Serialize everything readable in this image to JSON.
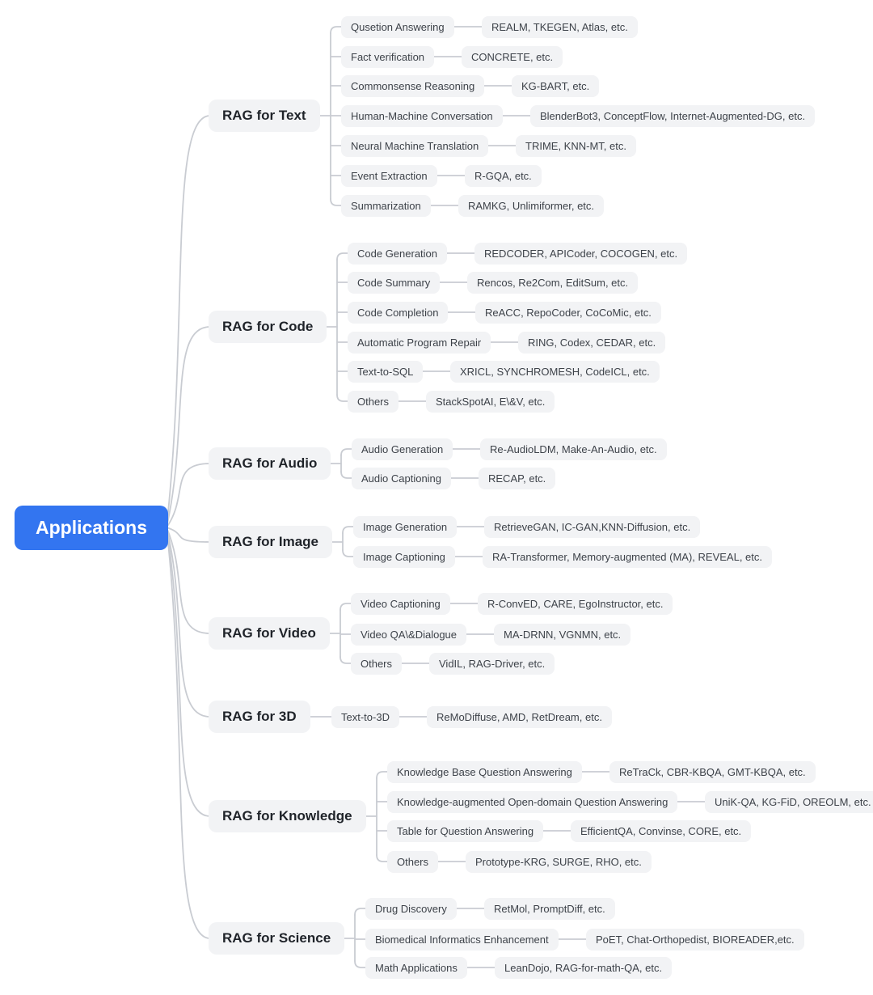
{
  "root": {
    "label": "Applications"
  },
  "colors": {
    "root_bg": "#3375f0",
    "root_text": "#ffffff",
    "node_bg": "#f2f3f5",
    "branch_text": "#1f2329",
    "topic_text": "#3d4249",
    "line": "#c9ccd2"
  },
  "branches": [
    {
      "label": "RAG for Text",
      "topics": [
        {
          "topic": "Qusetion Answering",
          "papers": "REALM, TKEGEN, Atlas, etc."
        },
        {
          "topic": "Fact verification",
          "papers": "CONCRETE, etc."
        },
        {
          "topic": "Commonsense Reasoning",
          "papers": "KG-BART, etc."
        },
        {
          "topic": "Human-Machine Conversation",
          "papers": "BlenderBot3, ConceptFlow, Internet-Augmented-DG, etc."
        },
        {
          "topic": "Neural Machine Translation",
          "papers": "TRIME, KNN-MT, etc."
        },
        {
          "topic": "Event Extraction",
          "papers": "R-GQA, etc."
        },
        {
          "topic": "Summarization",
          "papers": "RAMKG, Unlimiformer, etc."
        }
      ]
    },
    {
      "label": "RAG for Code",
      "topics": [
        {
          "topic": "Code Generation",
          "papers": "REDCODER, APICoder, COCOGEN, etc."
        },
        {
          "topic": "Code Summary",
          "papers": "Rencos, Re2Com, EditSum, etc."
        },
        {
          "topic": "Code Completion",
          "papers": "ReACC, RepoCoder, CoCoMic, etc."
        },
        {
          "topic": "Automatic Program Repair",
          "papers": "RING, Codex, CEDAR, etc."
        },
        {
          "topic": "Text-to-SQL",
          "papers": "XRICL, SYNCHROMESH, CodeICL, etc."
        },
        {
          "topic": "Others",
          "papers": "StackSpotAI, E\\&V, etc."
        }
      ]
    },
    {
      "label": "RAG for Audio",
      "topics": [
        {
          "topic": "Audio Generation",
          "papers": "Re-AudioLDM, Make-An-Audio, etc."
        },
        {
          "topic": "Audio Captioning",
          "papers": "RECAP, etc."
        }
      ]
    },
    {
      "label": "RAG for Image",
      "topics": [
        {
          "topic": "Image Generation",
          "papers": "RetrieveGAN, IC-GAN,KNN-Diffusion, etc."
        },
        {
          "topic": "Image Captioning",
          "papers": "RA-Transformer, Memory-augmented (MA), REVEAL, etc."
        }
      ]
    },
    {
      "label": "RAG for Video",
      "topics": [
        {
          "topic": "Video Captioning",
          "papers": "R-ConvED, CARE, EgoInstructor, etc."
        },
        {
          "topic": "Video QA\\&Dialogue",
          "papers": "MA-DRNN, VGNMN, etc."
        },
        {
          "topic": "Others",
          "papers": "VidIL, RAG-Driver, etc."
        }
      ]
    },
    {
      "label": "RAG for 3D",
      "topics": [
        {
          "topic": "Text-to-3D",
          "papers": "ReMoDiffuse, AMD, RetDream, etc."
        }
      ]
    },
    {
      "label": "RAG for Knowledge",
      "topics": [
        {
          "topic": "Knowledge Base Question Answering",
          "papers": "ReTraCk, CBR-KBQA, GMT-KBQA, etc."
        },
        {
          "topic": "Knowledge-augmented Open-domain Question Answering",
          "papers": "UniK-QA, KG-FiD, OREOLM, etc."
        },
        {
          "topic": "Table for Question Answering",
          "papers": "EfficientQA, Convinse, CORE, etc."
        },
        {
          "topic": "Others",
          "papers": "Prototype-KRG, SURGE, RHO, etc."
        }
      ]
    },
    {
      "label": "RAG for Science",
      "topics": [
        {
          "topic": "Drug Discovery",
          "papers": "RetMol, PromptDiff, etc."
        },
        {
          "topic": "Biomedical Informatics Enhancement",
          "papers": "PoET, Chat-Orthopedist, BIOREADER,etc."
        },
        {
          "topic": "Math Applications",
          "papers": "LeanDojo, RAG-for-math-QA, etc."
        }
      ]
    }
  ]
}
